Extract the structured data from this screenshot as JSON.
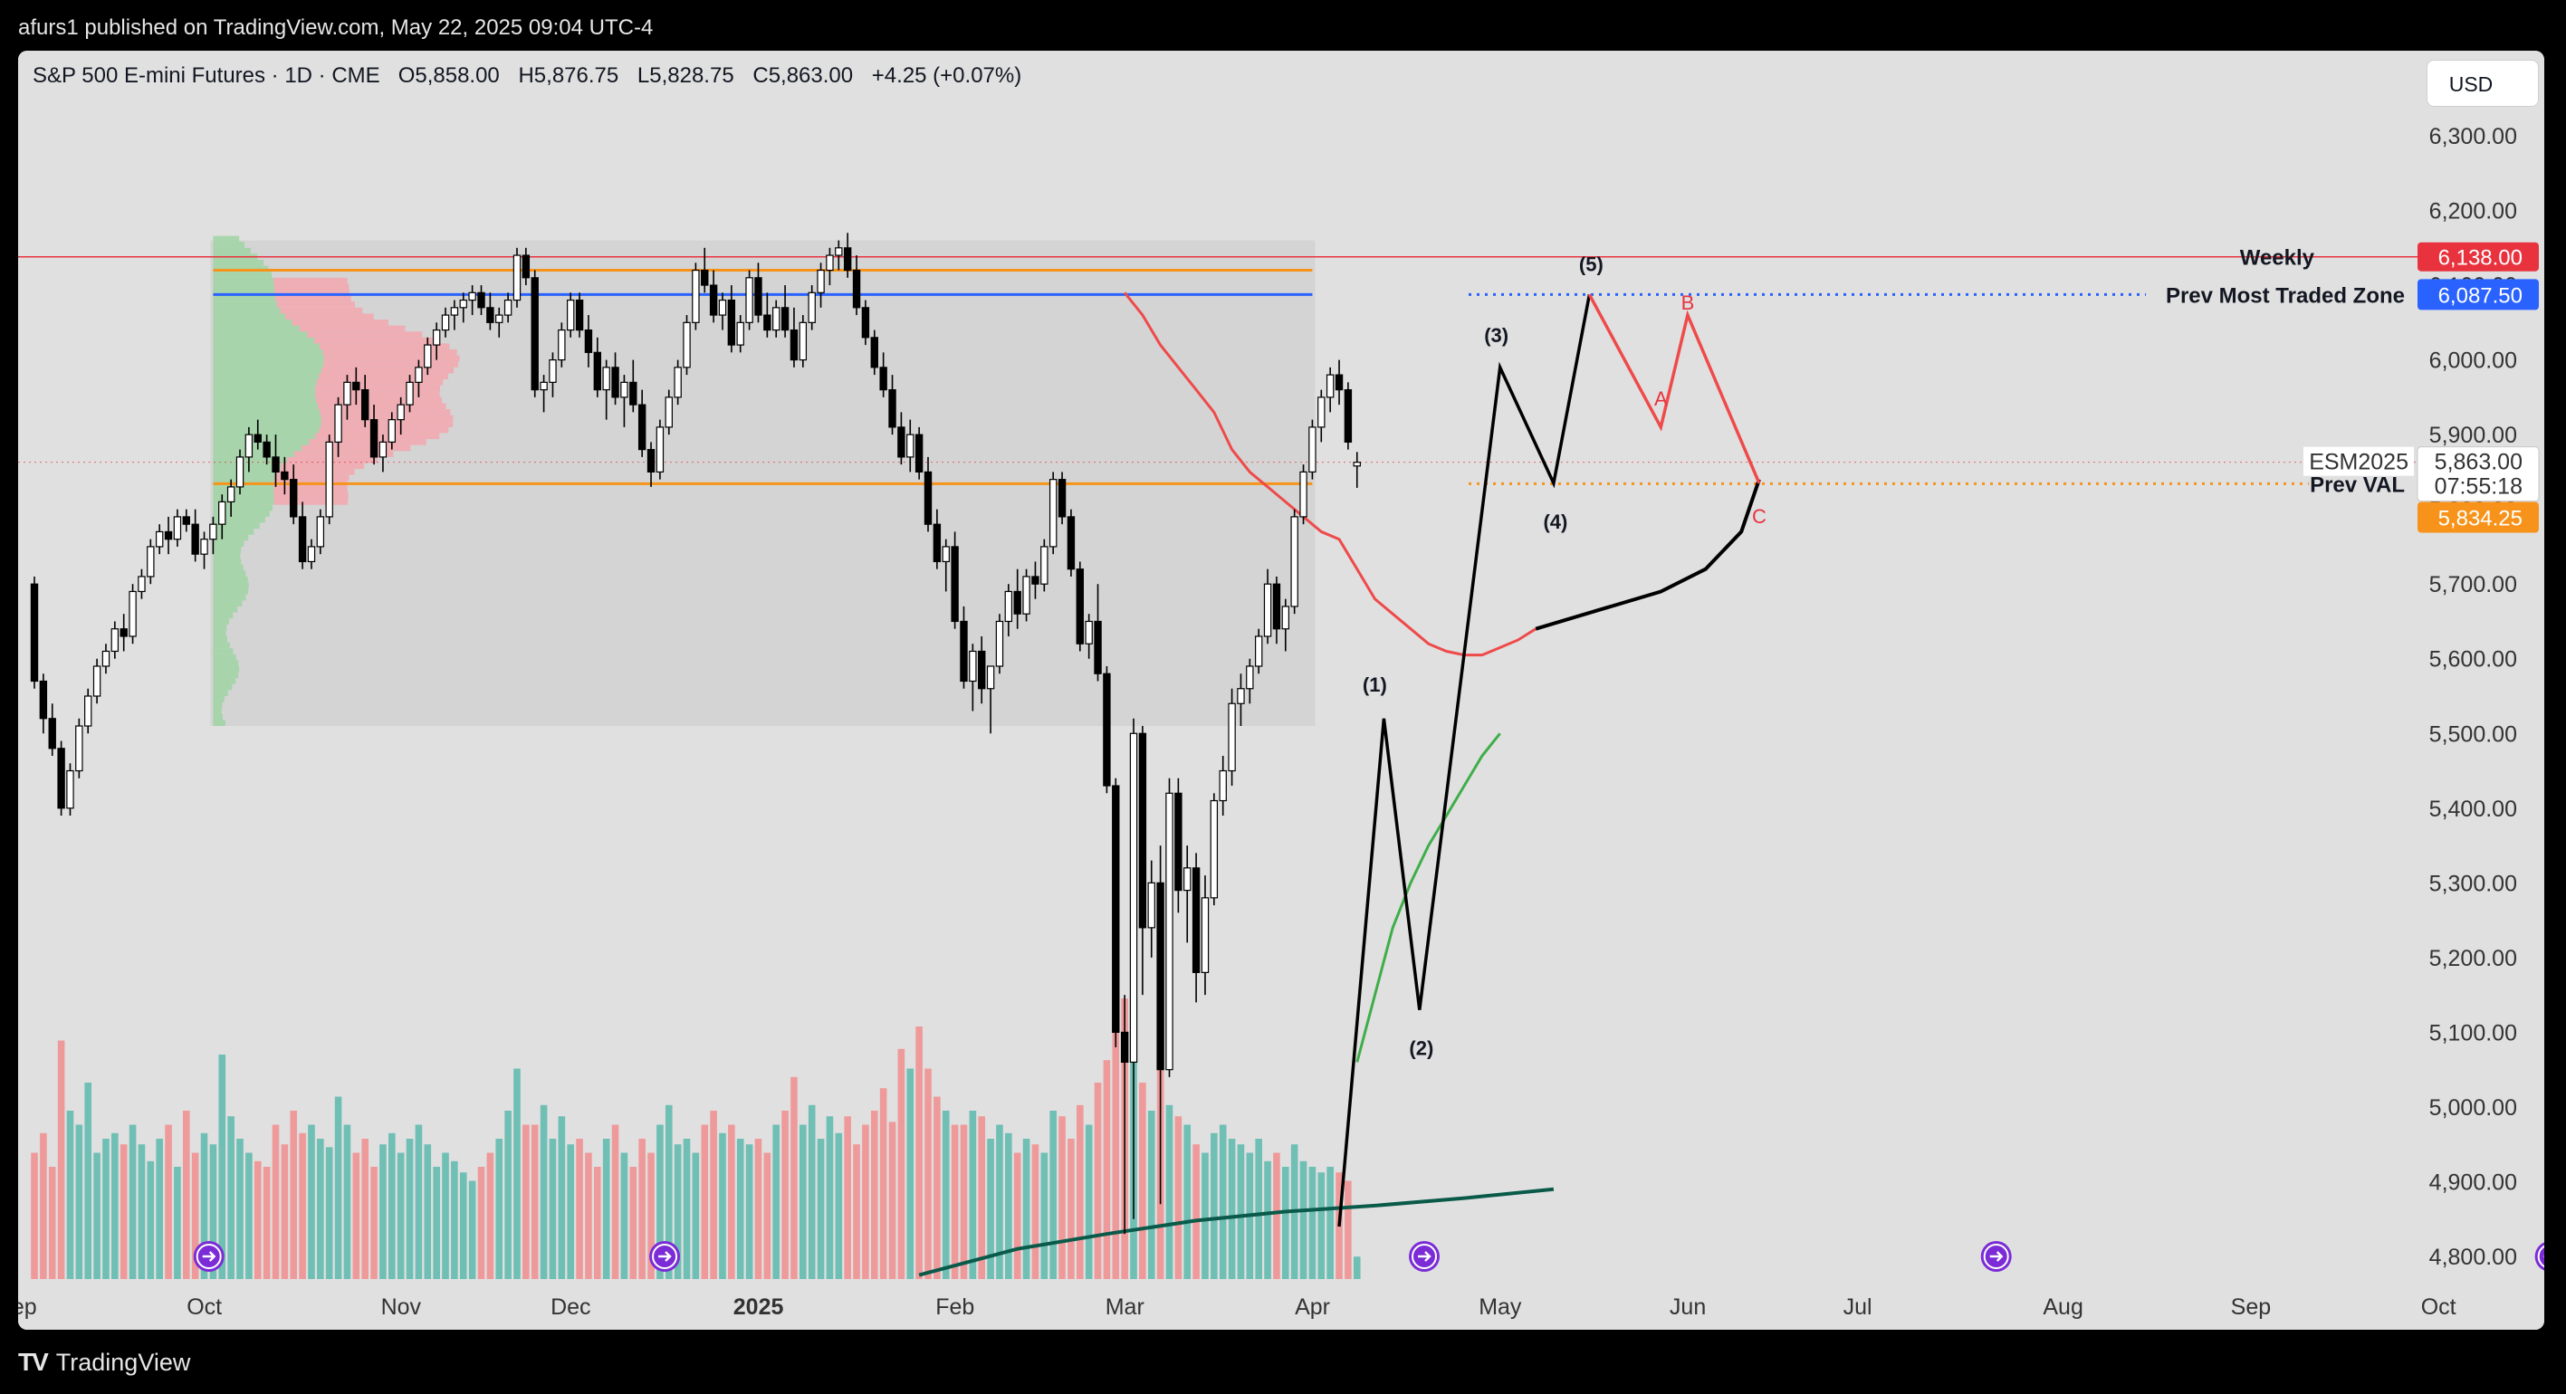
{
  "header": {
    "publisher_line": "afurs1 published on TradingView.com, May 22, 2025 09:04 UTC-4"
  },
  "footer": {
    "brand": "TradingView"
  },
  "toolbar": {
    "currency": "USD"
  },
  "legend": {
    "symbol": "S&P 500 E-mini Futures · 1D · CME",
    "open_label": "O",
    "open_value": "5,858.00",
    "high_label": "H",
    "high_value": "5,876.75",
    "low_label": "L",
    "low_value": "5,828.75",
    "close_label": "C",
    "close_value": "5,863.00",
    "change": "+4.25 (+0.07%)"
  },
  "colors": {
    "up": "#ffffff",
    "down": "#000000",
    "vol_up": "#6fbfb5",
    "vol_down": "#ef9a9a",
    "weekly": "#e8333e",
    "prev_most_traded": "#2962ff",
    "prev_val": "#f7931a",
    "ma_red": "#ef4a4a",
    "ma_green": "#3fae49",
    "ma_long": "#0a5a4a",
    "panel_bg": "#e0e0e0"
  },
  "chart_data": {
    "type": "candlestick",
    "symbol": "ESM2025",
    "y_axis": {
      "ticks": [
        6300,
        6200,
        6100,
        6000,
        5900,
        5800,
        5700,
        5600,
        5500,
        5400,
        5300,
        5200,
        5100,
        5000,
        4900,
        4800
      ],
      "tick_labels": [
        "6,300.00",
        "6,200.00",
        "6,100.00",
        "6,000.00",
        "5,900.00",
        "5,800.00",
        "5,700.00",
        "5,600.00",
        "5,500.00",
        "5,400.00",
        "5,300.00",
        "5,200.00",
        "5,100.00",
        "5,000.00",
        "4,900.00",
        "4,800.00"
      ],
      "range": [
        4775,
        6380
      ]
    },
    "x_axis": {
      "labels": [
        "Sep",
        "Oct",
        "Nov",
        "Dec",
        "2025",
        "Feb",
        "Mar",
        "Apr",
        "May",
        "Jun",
        "Jul",
        "Aug",
        "Sep",
        "Oct"
      ],
      "label_index": [
        -3,
        18,
        40,
        59,
        80,
        102,
        121,
        142,
        163,
        184,
        203,
        226,
        247,
        268
      ]
    },
    "candles": [
      [
        5700,
        5710,
        5560,
        5570
      ],
      [
        5570,
        5580,
        5500,
        5520
      ],
      [
        5520,
        5540,
        5470,
        5480
      ],
      [
        5480,
        5490,
        5390,
        5400
      ],
      [
        5400,
        5460,
        5390,
        5450
      ],
      [
        5450,
        5520,
        5440,
        5510
      ],
      [
        5510,
        5560,
        5500,
        5550
      ],
      [
        5550,
        5600,
        5540,
        5590
      ],
      [
        5590,
        5620,
        5580,
        5610
      ],
      [
        5610,
        5650,
        5600,
        5640
      ],
      [
        5640,
        5660,
        5610,
        5630
      ],
      [
        5630,
        5700,
        5620,
        5690
      ],
      [
        5690,
        5720,
        5680,
        5710
      ],
      [
        5710,
        5760,
        5700,
        5750
      ],
      [
        5750,
        5780,
        5740,
        5770
      ],
      [
        5770,
        5790,
        5740,
        5760
      ],
      [
        5760,
        5800,
        5750,
        5790
      ],
      [
        5790,
        5800,
        5770,
        5780
      ],
      [
        5780,
        5800,
        5730,
        5740
      ],
      [
        5740,
        5770,
        5720,
        5760
      ],
      [
        5760,
        5790,
        5740,
        5780
      ],
      [
        5780,
        5820,
        5760,
        5810
      ],
      [
        5810,
        5840,
        5790,
        5830
      ],
      [
        5830,
        5880,
        5820,
        5870
      ],
      [
        5870,
        5910,
        5850,
        5900
      ],
      [
        5900,
        5920,
        5880,
        5890
      ],
      [
        5890,
        5900,
        5860,
        5870
      ],
      [
        5870,
        5900,
        5830,
        5850
      ],
      [
        5850,
        5870,
        5820,
        5840
      ],
      [
        5840,
        5860,
        5780,
        5790
      ],
      [
        5790,
        5810,
        5720,
        5730
      ],
      [
        5730,
        5760,
        5720,
        5750
      ],
      [
        5750,
        5800,
        5740,
        5790
      ],
      [
        5790,
        5900,
        5780,
        5890
      ],
      [
        5890,
        5950,
        5870,
        5940
      ],
      [
        5940,
        5980,
        5920,
        5970
      ],
      [
        5970,
        5990,
        5940,
        5960
      ],
      [
        5960,
        5980,
        5910,
        5920
      ],
      [
        5920,
        5940,
        5860,
        5870
      ],
      [
        5870,
        5900,
        5850,
        5890
      ],
      [
        5890,
        5930,
        5880,
        5920
      ],
      [
        5920,
        5950,
        5900,
        5940
      ],
      [
        5940,
        5980,
        5930,
        5970
      ],
      [
        5970,
        6000,
        5950,
        5990
      ],
      [
        5990,
        6030,
        5980,
        6020
      ],
      [
        6020,
        6050,
        6000,
        6040
      ],
      [
        6040,
        6070,
        6030,
        6060
      ],
      [
        6060,
        6080,
        6040,
        6070
      ],
      [
        6070,
        6090,
        6050,
        6080
      ],
      [
        6080,
        6100,
        6060,
        6090
      ],
      [
        6090,
        6100,
        6060,
        6070
      ],
      [
        6070,
        6090,
        6040,
        6050
      ],
      [
        6050,
        6070,
        6030,
        6060
      ],
      [
        6060,
        6090,
        6050,
        6080
      ],
      [
        6080,
        6150,
        6070,
        6140
      ],
      [
        6140,
        6150,
        6100,
        6110
      ],
      [
        6110,
        6120,
        5950,
        5960
      ],
      [
        5960,
        5980,
        5930,
        5970
      ],
      [
        5970,
        6010,
        5950,
        6000
      ],
      [
        6000,
        6050,
        5990,
        6040
      ],
      [
        6040,
        6090,
        6030,
        6080
      ],
      [
        6080,
        6090,
        6030,
        6040
      ],
      [
        6040,
        6060,
        5990,
        6010
      ],
      [
        6010,
        6030,
        5950,
        5960
      ],
      [
        5960,
        6000,
        5920,
        5990
      ],
      [
        5990,
        6010,
        5940,
        5950
      ],
      [
        5950,
        5980,
        5910,
        5970
      ],
      [
        5970,
        6000,
        5930,
        5940
      ],
      [
        5940,
        5960,
        5870,
        5880
      ],
      [
        5880,
        5890,
        5830,
        5850
      ],
      [
        5850,
        5920,
        5840,
        5910
      ],
      [
        5910,
        5960,
        5900,
        5950
      ],
      [
        5950,
        6000,
        5940,
        5990
      ],
      [
        5990,
        6060,
        5980,
        6050
      ],
      [
        6050,
        6130,
        6040,
        6120
      ],
      [
        6120,
        6150,
        6090,
        6100
      ],
      [
        6100,
        6120,
        6050,
        6060
      ],
      [
        6060,
        6090,
        6040,
        6080
      ],
      [
        6080,
        6100,
        6010,
        6020
      ],
      [
        6020,
        6060,
        6010,
        6050
      ],
      [
        6050,
        6120,
        6040,
        6110
      ],
      [
        6110,
        6130,
        6050,
        6060
      ],
      [
        6060,
        6090,
        6030,
        6040
      ],
      [
        6040,
        6080,
        6030,
        6070
      ],
      [
        6070,
        6100,
        6030,
        6040
      ],
      [
        6040,
        6070,
        5990,
        6000
      ],
      [
        6000,
        6060,
        5990,
        6050
      ],
      [
        6050,
        6100,
        6040,
        6090
      ],
      [
        6090,
        6130,
        6070,
        6120
      ],
      [
        6120,
        6150,
        6100,
        6140
      ],
      [
        6140,
        6160,
        6120,
        6150
      ],
      [
        6150,
        6170,
        6110,
        6120
      ],
      [
        6120,
        6140,
        6060,
        6070
      ],
      [
        6070,
        6080,
        6020,
        6030
      ],
      [
        6030,
        6040,
        5980,
        5990
      ],
      [
        5990,
        6010,
        5950,
        5960
      ],
      [
        5960,
        5980,
        5900,
        5910
      ],
      [
        5910,
        5930,
        5860,
        5870
      ],
      [
        5870,
        5920,
        5850,
        5900
      ],
      [
        5900,
        5910,
        5840,
        5850
      ],
      [
        5850,
        5870,
        5770,
        5780
      ],
      [
        5780,
        5800,
        5720,
        5730
      ],
      [
        5730,
        5760,
        5690,
        5750
      ],
      [
        5750,
        5770,
        5640,
        5650
      ],
      [
        5650,
        5670,
        5560,
        5570
      ],
      [
        5570,
        5620,
        5530,
        5610
      ],
      [
        5610,
        5630,
        5540,
        5560
      ],
      [
        5560,
        5580,
        5500,
        5590
      ],
      [
        5590,
        5660,
        5580,
        5650
      ],
      [
        5650,
        5700,
        5630,
        5690
      ],
      [
        5690,
        5720,
        5640,
        5660
      ],
      [
        5660,
        5720,
        5650,
        5710
      ],
      [
        5710,
        5730,
        5680,
        5700
      ],
      [
        5700,
        5760,
        5690,
        5750
      ],
      [
        5750,
        5850,
        5740,
        5840
      ],
      [
        5840,
        5850,
        5780,
        5790
      ],
      [
        5790,
        5800,
        5710,
        5720
      ],
      [
        5720,
        5730,
        5610,
        5620
      ],
      [
        5620,
        5660,
        5600,
        5650
      ],
      [
        5650,
        5700,
        5570,
        5580
      ],
      [
        5580,
        5590,
        5420,
        5430
      ],
      [
        5430,
        5440,
        5080,
        5100
      ],
      [
        5100,
        5150,
        4830,
        5060
      ],
      [
        5060,
        5520,
        4850,
        5500
      ],
      [
        5500,
        5510,
        5150,
        5240
      ],
      [
        5240,
        5330,
        5200,
        5300
      ],
      [
        5300,
        5350,
        4870,
        5050
      ],
      [
        5050,
        5440,
        5040,
        5420
      ],
      [
        5420,
        5440,
        5260,
        5290
      ],
      [
        5290,
        5350,
        5220,
        5320
      ],
      [
        5320,
        5340,
        5140,
        5180
      ],
      [
        5180,
        5310,
        5150,
        5280
      ],
      [
        5280,
        5420,
        5270,
        5410
      ],
      [
        5410,
        5470,
        5390,
        5450
      ],
      [
        5450,
        5560,
        5430,
        5540
      ],
      [
        5540,
        5580,
        5510,
        5560
      ],
      [
        5560,
        5600,
        5540,
        5590
      ],
      [
        5590,
        5640,
        5580,
        5630
      ],
      [
        5630,
        5720,
        5620,
        5700
      ],
      [
        5700,
        5710,
        5620,
        5640
      ],
      [
        5640,
        5680,
        5610,
        5670
      ],
      [
        5670,
        5800,
        5660,
        5790
      ],
      [
        5790,
        5860,
        5780,
        5850
      ],
      [
        5850,
        5920,
        5840,
        5910
      ],
      [
        5910,
        5960,
        5890,
        5950
      ],
      [
        5950,
        5990,
        5930,
        5980
      ],
      [
        5980,
        6000,
        5940,
        5960
      ],
      [
        5960,
        5970,
        5880,
        5890
      ],
      [
        5858,
        5876.75,
        5828.75,
        5863
      ]
    ],
    "volume_relative": [
      0.45,
      0.52,
      0.4,
      0.85,
      0.6,
      0.55,
      0.7,
      0.45,
      0.5,
      0.52,
      0.48,
      0.55,
      0.48,
      0.42,
      0.5,
      0.55,
      0.4,
      0.6,
      0.45,
      0.52,
      0.48,
      0.8,
      0.58,
      0.5,
      0.45,
      0.42,
      0.4,
      0.55,
      0.48,
      0.6,
      0.52,
      0.55,
      0.5,
      0.47,
      0.65,
      0.55,
      0.45,
      0.5,
      0.4,
      0.48,
      0.52,
      0.45,
      0.5,
      0.55,
      0.48,
      0.4,
      0.45,
      0.42,
      0.38,
      0.35,
      0.4,
      0.45,
      0.5,
      0.6,
      0.75,
      0.55,
      0.55,
      0.62,
      0.5,
      0.58,
      0.48,
      0.5,
      0.45,
      0.4,
      0.5,
      0.55,
      0.45,
      0.4,
      0.5,
      0.45,
      0.55,
      0.62,
      0.48,
      0.5,
      0.45,
      0.55,
      0.6,
      0.52,
      0.55,
      0.5,
      0.48,
      0.5,
      0.45,
      0.55,
      0.6,
      0.72,
      0.55,
      0.62,
      0.5,
      0.58,
      0.52,
      0.58,
      0.48,
      0.55,
      0.6,
      0.68,
      0.56,
      0.82,
      0.75,
      0.9,
      0.75,
      0.65,
      0.6,
      0.55,
      0.55,
      0.6,
      0.58,
      0.5,
      0.55,
      0.52,
      0.45,
      0.5,
      0.48,
      0.45,
      0.6,
      0.58,
      0.5,
      0.62,
      0.55,
      0.7,
      0.78,
      0.9,
      1.0,
      0.85,
      0.7,
      0.6,
      0.75,
      0.62,
      0.58,
      0.55,
      0.48,
      0.45,
      0.52,
      0.55,
      0.5,
      0.48,
      0.45,
      0.5,
      0.42,
      0.45,
      0.4,
      0.48,
      0.42,
      0.4,
      0.38,
      0.4,
      0.38,
      0.35,
      0.08
    ],
    "volume_profile": {
      "range": [
        5510,
        6160
      ],
      "start_index": 20,
      "end_index": 143
    },
    "moving_average_red": [
      [
        122,
        6090
      ],
      [
        124,
        6060
      ],
      [
        126,
        6020
      ],
      [
        128,
        5990
      ],
      [
        130,
        5960
      ],
      [
        132,
        5930
      ],
      [
        134,
        5880
      ],
      [
        136,
        5850
      ],
      [
        138,
        5830
      ],
      [
        140,
        5810
      ],
      [
        142,
        5790
      ],
      [
        144,
        5770
      ],
      [
        146,
        5760
      ],
      [
        148,
        5720
      ],
      [
        150,
        5680
      ],
      [
        152,
        5660
      ],
      [
        154,
        5640
      ],
      [
        156,
        5620
      ],
      [
        158,
        5610
      ],
      [
        160,
        5605
      ],
      [
        162,
        5605
      ],
      [
        164,
        5615
      ],
      [
        166,
        5625
      ],
      [
        168,
        5640
      ]
    ],
    "moving_average_green": [
      [
        148,
        5060
      ],
      [
        150,
        5150
      ],
      [
        152,
        5240
      ],
      [
        154,
        5300
      ],
      [
        156,
        5350
      ],
      [
        158,
        5390
      ],
      [
        160,
        5430
      ],
      [
        162,
        5470
      ],
      [
        164,
        5500
      ]
    ],
    "moving_average_long": [
      [
        99,
        4775
      ],
      [
        110,
        4810
      ],
      [
        120,
        4830
      ],
      [
        130,
        4848
      ],
      [
        140,
        4860
      ],
      [
        150,
        4868
      ],
      [
        160,
        4878
      ],
      [
        170,
        4890
      ]
    ],
    "elliott_wave": {
      "points": [
        [
          146,
          4840
        ],
        [
          151,
          5520
        ],
        [
          155,
          5130
        ],
        [
          164,
          5990
        ],
        [
          170,
          5835
        ],
        [
          174,
          6087.5
        ]
      ],
      "labels": [
        "(1)",
        "(2)",
        "(3)",
        "(4)",
        "(5)"
      ]
    },
    "abc_projection": {
      "points": [
        [
          174,
          6087.5
        ],
        [
          182,
          5910
        ],
        [
          185,
          6060
        ],
        [
          193,
          5835
        ]
      ],
      "labels": [
        "A",
        "B",
        "C"
      ]
    },
    "projected_curve": [
      [
        168,
        5640
      ],
      [
        175,
        5665
      ],
      [
        182,
        5690
      ],
      [
        187,
        5720
      ],
      [
        191,
        5770
      ],
      [
        193,
        5840
      ]
    ],
    "levels": [
      {
        "name": "Weekly",
        "value": 6138.0,
        "value_label": "6,138.00"
      },
      {
        "name": "Prev Most Traded Zone",
        "value": 6087.5,
        "value_label": "6,087.50"
      },
      {
        "name": "Prev VAL",
        "value": 5834.25,
        "value_label": "5,834.25"
      }
    ],
    "last_price": {
      "symbol": "ESM2025",
      "value": 5863.0,
      "value_label": "5,863.00",
      "countdown": "07:55:18"
    },
    "hidden_label_behind": "6,100.00"
  }
}
